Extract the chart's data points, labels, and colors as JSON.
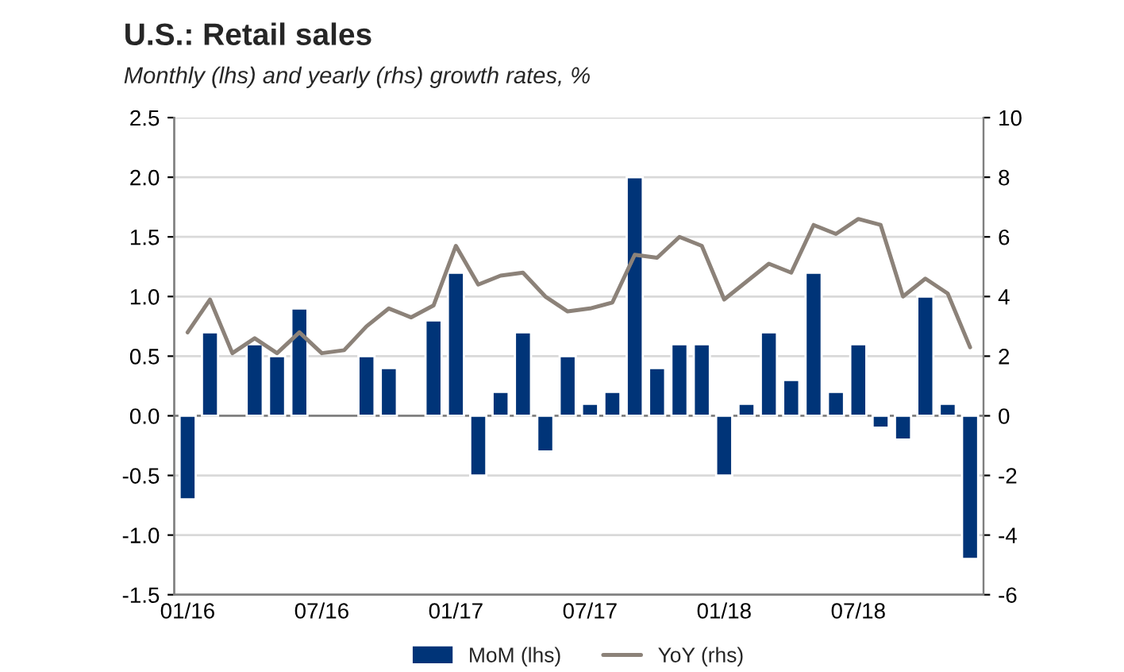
{
  "chart_data": {
    "type": "bar",
    "title": "U.S.: Retail sales",
    "subtitle": "Monthly (lhs) and yearly (rhs) growth rates, %",
    "categories": [
      "01/16",
      null,
      null,
      null,
      null,
      null,
      "07/16",
      null,
      null,
      null,
      null,
      null,
      "01/17",
      null,
      null,
      null,
      null,
      null,
      "07/17",
      null,
      null,
      null,
      null,
      null,
      "01/18",
      null,
      null,
      null,
      null,
      null,
      "07/18",
      null,
      null,
      null,
      null,
      null
    ],
    "series": [
      {
        "name": "MoM (lhs)",
        "color": "#003478",
        "values": [
          -0.7,
          0.7,
          null,
          0.6,
          0.5,
          0.9,
          null,
          null,
          0.5,
          0.4,
          null,
          0.8,
          1.2,
          -0.5,
          0.2,
          0.7,
          -0.3,
          0.5,
          0.1,
          0.2,
          2.0,
          0.4,
          0.6,
          0.6,
          -0.5,
          0.1,
          0.7,
          0.3,
          1.2,
          0.2,
          0.6,
          -0.1,
          -0.2,
          1.0,
          0.1,
          -1.2
        ]
      },
      {
        "name": "YoY (rhs)",
        "type": "line",
        "axis": "y2",
        "color": "#8c8279",
        "values": [
          2.8,
          3.9,
          2.1,
          2.6,
          2.1,
          2.8,
          2.1,
          2.2,
          3.0,
          3.6,
          3.3,
          3.7,
          5.7,
          4.4,
          4.7,
          4.8,
          4.0,
          3.5,
          3.6,
          3.8,
          5.4,
          5.3,
          6.0,
          5.7,
          3.9,
          4.5,
          5.1,
          4.8,
          6.4,
          6.1,
          6.6,
          6.4,
          4.0,
          4.6,
          4.1,
          2.3
        ]
      }
    ],
    "ylim": [
      -1.5,
      2.5
    ],
    "yticks": [
      {
        "value": -1.5,
        "label": "-1.5"
      },
      {
        "value": -1.0,
        "label": "-1.0"
      },
      {
        "value": -0.5,
        "label": "-0.5"
      },
      {
        "value": 0.0,
        "label": "0.0"
      },
      {
        "value": 0.5,
        "label": "0.5"
      },
      {
        "value": 1.0,
        "label": "1.0"
      },
      {
        "value": 1.5,
        "label": "1.5"
      },
      {
        "value": 2.0,
        "label": "2.0"
      },
      {
        "value": 2.5,
        "label": "2.5"
      }
    ],
    "y2lim": [
      -6,
      10
    ],
    "y2ticks": [
      -6,
      -4,
      -2,
      0,
      2,
      4,
      6,
      8,
      10
    ],
    "grid": "y",
    "legend": "bottom"
  }
}
